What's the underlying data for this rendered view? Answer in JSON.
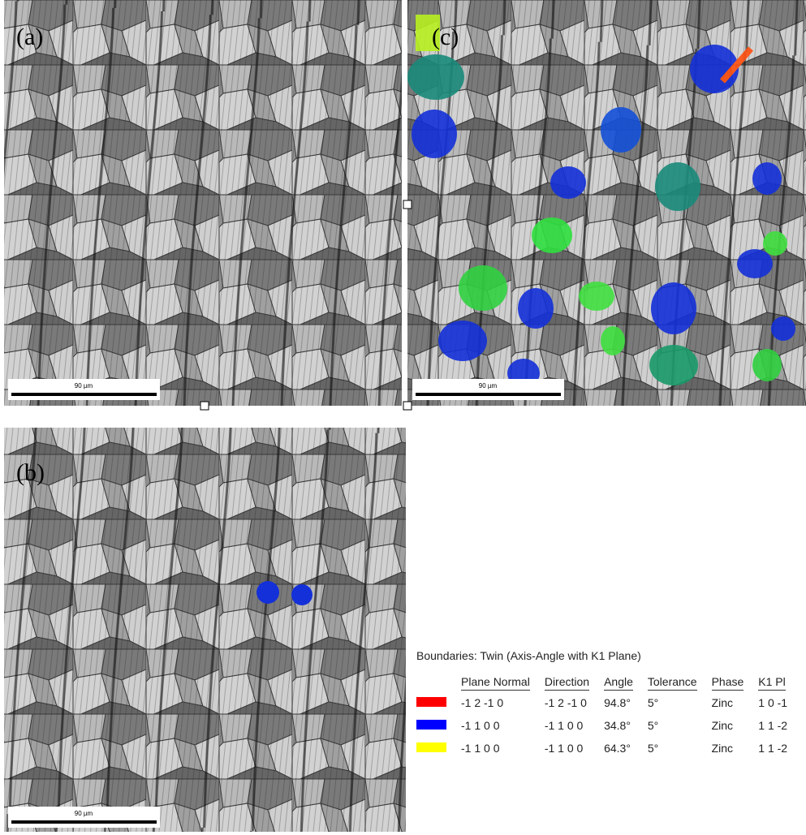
{
  "panels": [
    {
      "label": "(a)",
      "scale_bar": "90 µm"
    },
    {
      "label": "(c)",
      "scale_bar": "90 µm"
    },
    {
      "label": "(b)",
      "scale_bar": "90 µm"
    }
  ],
  "legend": {
    "title": "Boundaries: Twin (Axis-Angle with K1 Plane)",
    "columns": [
      "Plane Normal",
      "Direction",
      "Angle",
      "Tolerance",
      "Phase",
      "K1 Pl"
    ],
    "rows": [
      {
        "color": "#ff0000",
        "cells": [
          "-1 2 -1 0",
          "-1 2 -1 0",
          "94.8°",
          "5°",
          "Zinc",
          "1 0 -1"
        ]
      },
      {
        "color": "#0000ff",
        "cells": [
          "-1 1 0 0",
          "-1 1 0 0",
          "34.8°",
          "5°",
          "Zinc",
          "1 1 -2"
        ]
      },
      {
        "color": "#ffff00",
        "cells": [
          "-1 1 0 0",
          "-1 1 0 0",
          "64.3°",
          "5°",
          "Zinc",
          "1 1 -2"
        ]
      }
    ]
  }
}
